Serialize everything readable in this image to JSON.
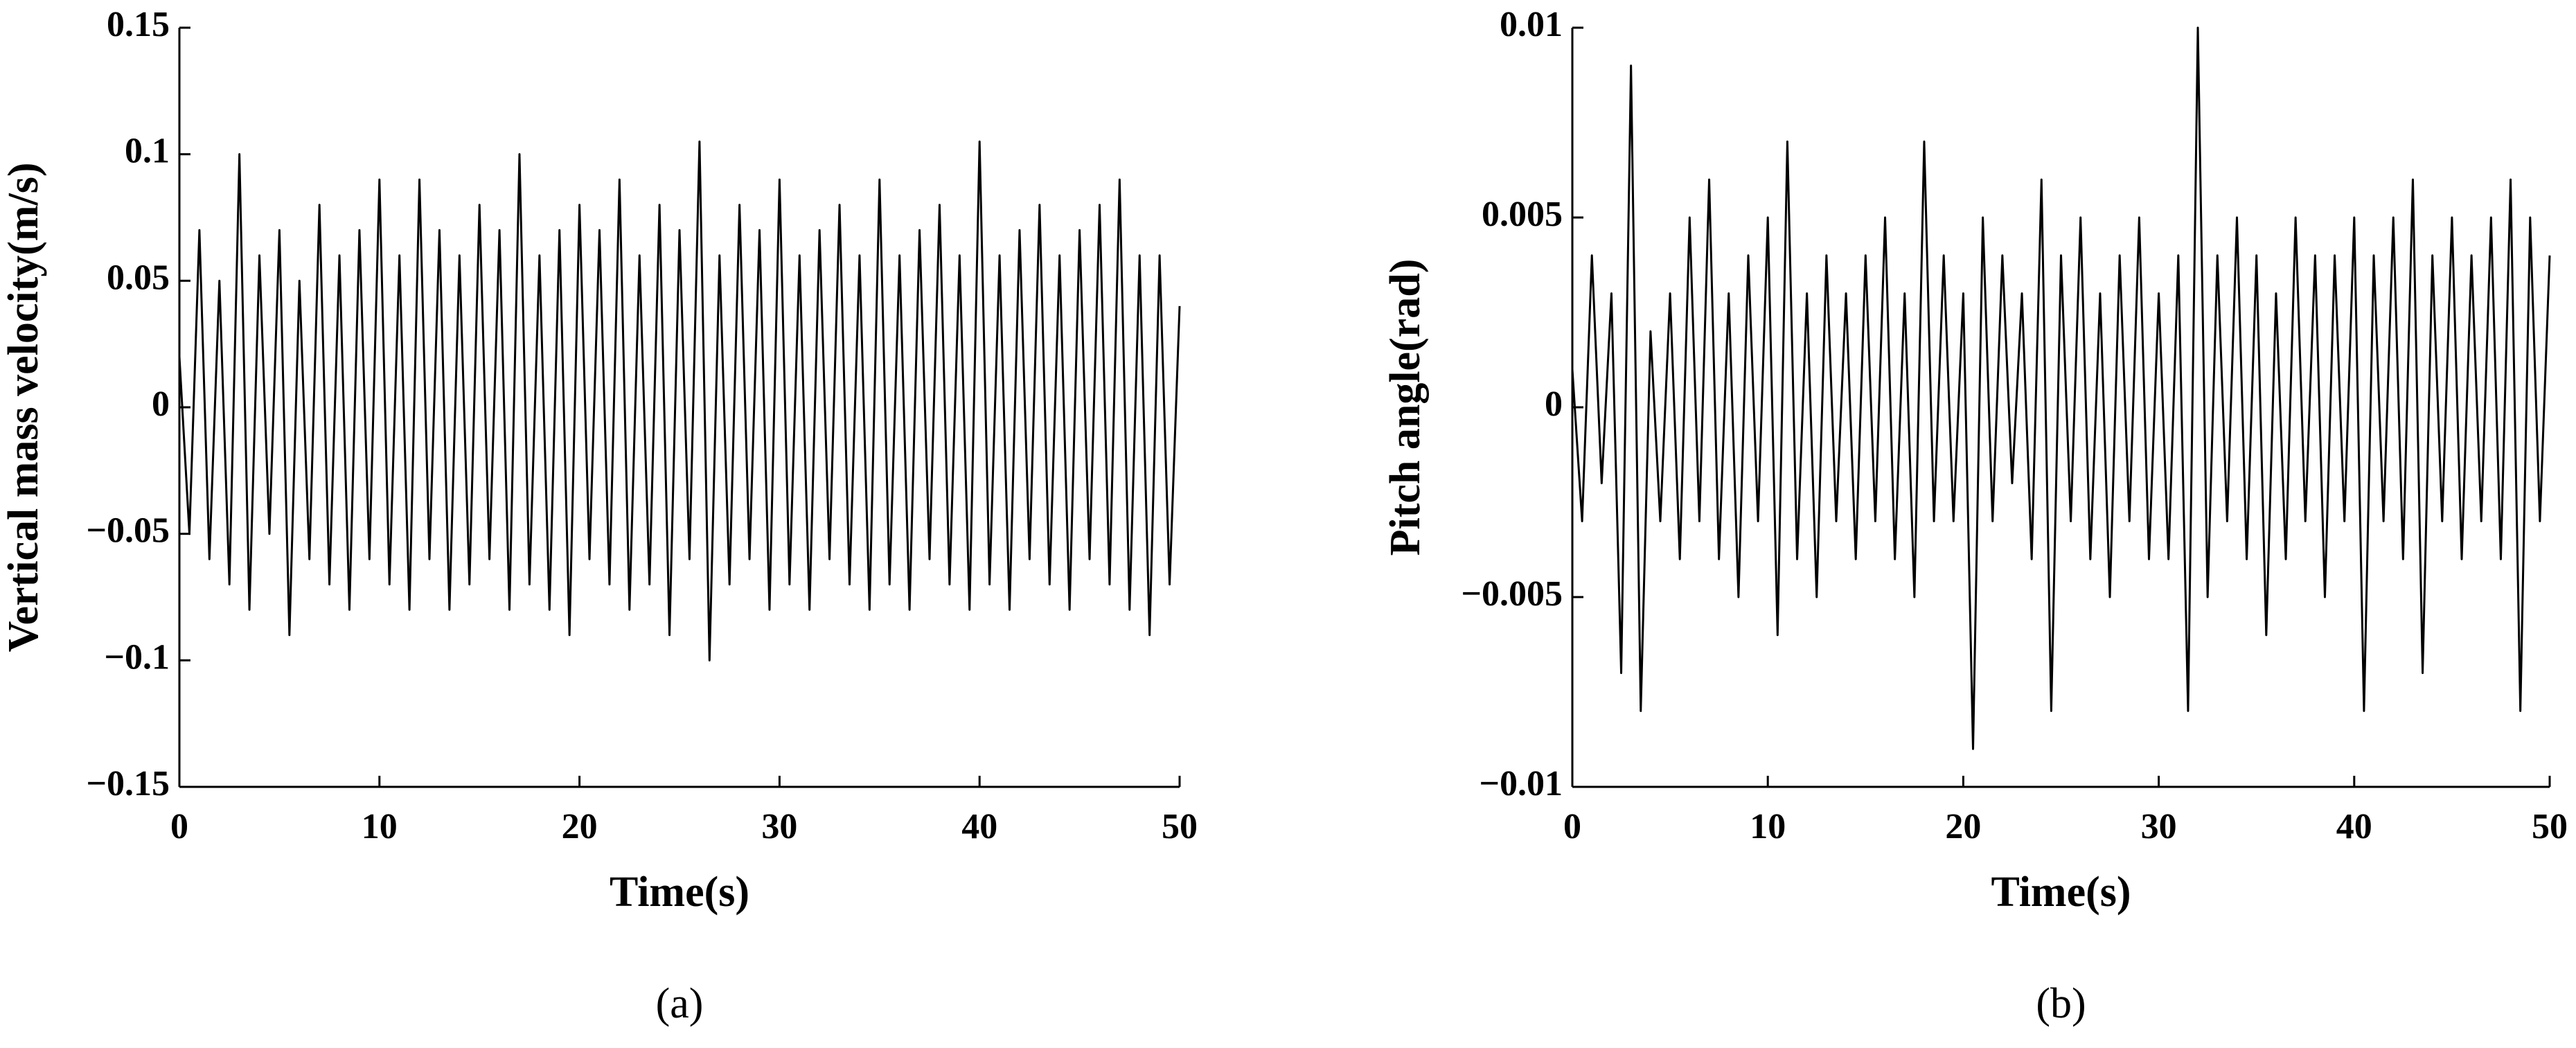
{
  "chart_data": [
    {
      "type": "line",
      "caption": "(a)",
      "ylabel": "Vertical mass velocity(m/s)",
      "xlabel": "Time(s)",
      "color": "#000000",
      "x": [
        0,
        0.5,
        1,
        1.5,
        2,
        2.5,
        3,
        3.5,
        4,
        4.5,
        5,
        5.5,
        6,
        6.5,
        7,
        7.5,
        8,
        8.5,
        9,
        9.5,
        10,
        10.5,
        11,
        11.5,
        12,
        12.5,
        13,
        13.5,
        14,
        14.5,
        15,
        15.5,
        16,
        16.5,
        17,
        17.5,
        18,
        18.5,
        19,
        19.5,
        20,
        20.5,
        21,
        21.5,
        22,
        22.5,
        23,
        23.5,
        24,
        24.5,
        25,
        25.5,
        26,
        26.5,
        27,
        27.5,
        28,
        28.5,
        29,
        29.5,
        30,
        30.5,
        31,
        31.5,
        32,
        32.5,
        33,
        33.5,
        34,
        34.5,
        35,
        35.5,
        36,
        36.5,
        37,
        37.5,
        38,
        38.5,
        39,
        39.5,
        40,
        40.5,
        41,
        41.5,
        42,
        42.5,
        43,
        43.5,
        44,
        44.5,
        45,
        45.5,
        46,
        46.5,
        47,
        47.5,
        48,
        48.5,
        49,
        49.5,
        50
      ],
      "values": [
        0.02,
        -0.05,
        0.07,
        -0.06,
        0.05,
        -0.07,
        0.1,
        -0.08,
        0.06,
        -0.05,
        0.07,
        -0.09,
        0.05,
        -0.06,
        0.08,
        -0.07,
        0.06,
        -0.08,
        0.07,
        -0.06,
        0.09,
        -0.07,
        0.06,
        -0.08,
        0.09,
        -0.06,
        0.07,
        -0.08,
        0.06,
        -0.07,
        0.08,
        -0.06,
        0.07,
        -0.08,
        0.1,
        -0.07,
        0.06,
        -0.08,
        0.07,
        -0.09,
        0.08,
        -0.06,
        0.07,
        -0.07,
        0.09,
        -0.08,
        0.06,
        -0.07,
        0.08,
        -0.09,
        0.07,
        -0.06,
        0.105,
        -0.1,
        0.06,
        -0.07,
        0.08,
        -0.06,
        0.07,
        -0.08,
        0.09,
        -0.07,
        0.06,
        -0.08,
        0.07,
        -0.06,
        0.08,
        -0.07,
        0.06,
        -0.08,
        0.09,
        -0.07,
        0.06,
        -0.08,
        0.07,
        -0.06,
        0.08,
        -0.07,
        0.06,
        -0.08,
        0.105,
        -0.07,
        0.06,
        -0.08,
        0.07,
        -0.06,
        0.08,
        -0.07,
        0.06,
        -0.08,
        0.07,
        -0.06,
        0.08,
        -0.07,
        0.09,
        -0.08,
        0.06,
        -0.09,
        0.06,
        -0.07,
        0.04
      ],
      "xlim": [
        0,
        50
      ],
      "xticks": [
        0,
        10,
        20,
        30,
        40,
        50
      ],
      "ylim": [
        -0.15,
        0.15
      ],
      "yticks": [
        {
          "value": -0.15,
          "label": "−0.15"
        },
        {
          "value": -0.1,
          "label": "−0.1"
        },
        {
          "value": -0.05,
          "label": "−0.05"
        },
        0,
        0.05,
        0.1,
        0.15
      ]
    },
    {
      "type": "line",
      "caption": "(b)",
      "ylabel": "Pitch angle(rad)",
      "xlabel": "Time(s)",
      "color": "#000000",
      "x": [
        0,
        0.5,
        1,
        1.5,
        2,
        2.5,
        3,
        3.5,
        4,
        4.5,
        5,
        5.5,
        6,
        6.5,
        7,
        7.5,
        8,
        8.5,
        9,
        9.5,
        10,
        10.5,
        11,
        11.5,
        12,
        12.5,
        13,
        13.5,
        14,
        14.5,
        15,
        15.5,
        16,
        16.5,
        17,
        17.5,
        18,
        18.5,
        19,
        19.5,
        20,
        20.5,
        21,
        21.5,
        22,
        22.5,
        23,
        23.5,
        24,
        24.5,
        25,
        25.5,
        26,
        26.5,
        27,
        27.5,
        28,
        28.5,
        29,
        29.5,
        30,
        30.5,
        31,
        31.5,
        32,
        32.5,
        33,
        33.5,
        34,
        34.5,
        35,
        35.5,
        36,
        36.5,
        37,
        37.5,
        38,
        38.5,
        39,
        39.5,
        40,
        40.5,
        41,
        41.5,
        42,
        42.5,
        43,
        43.5,
        44,
        44.5,
        45,
        45.5,
        46,
        46.5,
        47,
        47.5,
        48,
        48.5,
        49,
        49.5,
        50
      ],
      "values": [
        0.001,
        -0.003,
        0.004,
        -0.002,
        0.003,
        -0.007,
        0.009,
        -0.008,
        0.002,
        -0.003,
        0.003,
        -0.004,
        0.005,
        -0.003,
        0.006,
        -0.004,
        0.003,
        -0.005,
        0.004,
        -0.003,
        0.005,
        -0.006,
        0.007,
        -0.004,
        0.003,
        -0.005,
        0.004,
        -0.003,
        0.003,
        -0.004,
        0.004,
        -0.003,
        0.005,
        -0.004,
        0.003,
        -0.005,
        0.007,
        -0.003,
        0.004,
        -0.003,
        0.003,
        -0.009,
        0.005,
        -0.003,
        0.004,
        -0.002,
        0.003,
        -0.004,
        0.006,
        -0.008,
        0.004,
        -0.003,
        0.005,
        -0.004,
        0.003,
        -0.005,
        0.004,
        -0.003,
        0.005,
        -0.004,
        0.003,
        -0.004,
        0.004,
        -0.008,
        0.01,
        -0.005,
        0.004,
        -0.003,
        0.005,
        -0.004,
        0.004,
        -0.006,
        0.003,
        -0.004,
        0.005,
        -0.003,
        0.004,
        -0.005,
        0.004,
        -0.003,
        0.005,
        -0.008,
        0.004,
        -0.003,
        0.005,
        -0.004,
        0.006,
        -0.007,
        0.004,
        -0.003,
        0.005,
        -0.004,
        0.004,
        -0.003,
        0.005,
        -0.004,
        0.006,
        -0.008,
        0.005,
        -0.003,
        0.004
      ],
      "xlim": [
        0,
        50
      ],
      "xticks": [
        0,
        10,
        20,
        30,
        40,
        50
      ],
      "ylim": [
        -0.01,
        0.01
      ],
      "yticks": [
        {
          "value": -0.01,
          "label": "−0.01"
        },
        {
          "value": -0.005,
          "label": "−0.005"
        },
        0,
        0.005,
        0.01
      ]
    }
  ]
}
